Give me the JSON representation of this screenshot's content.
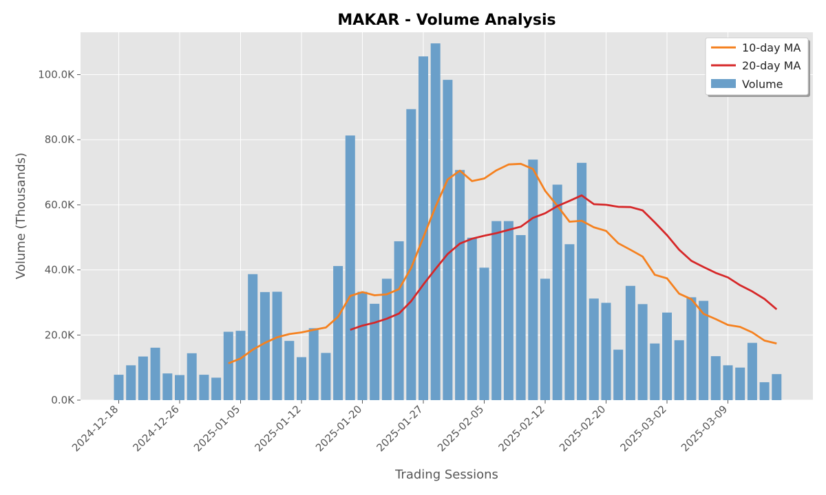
{
  "chart_data": {
    "type": "bar",
    "title": "MAKAR - Volume Analysis",
    "xlabel": "Trading Sessions",
    "ylabel": "Volume (Thousands)",
    "ylim": [
      0,
      113000
    ],
    "yticks": [
      0,
      20000,
      40000,
      60000,
      80000,
      100000
    ],
    "ytick_labels": [
      "0.0K",
      "20.0K",
      "40.0K",
      "60.0K",
      "80.0K",
      "100.0K"
    ],
    "xtick_labels": [
      {
        "index": 0,
        "label": "2024-12-18"
      },
      {
        "index": 5,
        "label": "2024-12-26"
      },
      {
        "index": 10,
        "label": "2025-01-05"
      },
      {
        "index": 15,
        "label": "2025-01-12"
      },
      {
        "index": 20,
        "label": "2025-01-20"
      },
      {
        "index": 25,
        "label": "2025-01-27"
      },
      {
        "index": 30,
        "label": "2025-02-05"
      },
      {
        "index": 35,
        "label": "2025-02-12"
      },
      {
        "index": 40,
        "label": "2025-02-20"
      },
      {
        "index": 45,
        "label": "2025-03-02"
      },
      {
        "index": 50,
        "label": "2025-03-09"
      }
    ],
    "grid": true,
    "legend_position": "top-right",
    "series": [
      {
        "name": "Volume",
        "kind": "bar",
        "color": "#6a9fc9",
        "values": [
          7800,
          10700,
          13400,
          16100,
          8200,
          7700,
          14400,
          7800,
          6900,
          21000,
          21300,
          38700,
          33200,
          33300,
          18200,
          13200,
          22100,
          14500,
          41200,
          81300,
          33300,
          29600,
          37300,
          48800,
          89400,
          105600,
          109600,
          98400,
          70700,
          49900,
          40700,
          55000,
          55000,
          50700,
          73900,
          37300,
          66200,
          47900,
          72900,
          31200,
          29900,
          15500,
          35100,
          29500,
          17400,
          26900,
          18400,
          31600,
          30500,
          13500,
          10700,
          10000,
          17600,
          5500,
          8000
        ]
      },
      {
        "name": "10-day MA",
        "kind": "line",
        "color": "#f5811f",
        "values": [
          null,
          null,
          null,
          null,
          null,
          null,
          null,
          null,
          null,
          11300,
          12800,
          15500,
          17600,
          19300,
          20300,
          20800,
          21600,
          22300,
          25600,
          32000,
          33200,
          32200,
          32500,
          34100,
          40600,
          50000,
          59400,
          67800,
          70500,
          67300,
          68100,
          70600,
          72400,
          72600,
          71000,
          64300,
          59700,
          54800,
          55100,
          53100,
          52000,
          48200,
          46200,
          44100,
          38500,
          37400,
          32700,
          31000,
          26500,
          24900,
          23100,
          22500,
          20800,
          18300,
          17400
        ]
      },
      {
        "name": "20-day MA",
        "kind": "line",
        "color": "#d62728",
        "values": [
          null,
          null,
          null,
          null,
          null,
          null,
          null,
          null,
          null,
          null,
          null,
          null,
          null,
          null,
          null,
          null,
          null,
          null,
          null,
          21600,
          22900,
          23800,
          25000,
          26600,
          30400,
          35500,
          40300,
          44900,
          48100,
          49600,
          50500,
          51300,
          52300,
          53300,
          56000,
          57400,
          59600,
          61200,
          62900,
          60200,
          60000,
          59400,
          59300,
          58300,
          54600,
          50700,
          46200,
          42800,
          40900,
          39100,
          37700,
          35300,
          33400,
          31100,
          27900
        ]
      }
    ]
  }
}
